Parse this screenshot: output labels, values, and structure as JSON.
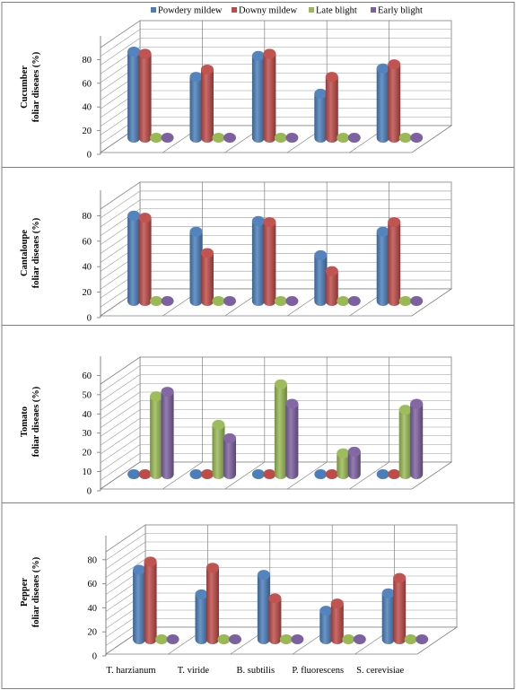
{
  "legend": [
    {
      "name": "Powdery mildew",
      "color": "#4a7ebb"
    },
    {
      "name": "Downy mildew",
      "color": "#be4b48"
    },
    {
      "name": "Late blight",
      "color": "#98b954"
    },
    {
      "name": "Early blight",
      "color": "#7d60a0"
    }
  ],
  "chart_data": [
    {
      "type": "bar",
      "ylabel": [
        "Cucumber",
        "foliar diseaes (%)"
      ],
      "categories": [
        "T. harzianum",
        "T. viride",
        "B. subtilis",
        "P. fluorescens",
        "S. cerevisiae"
      ],
      "yticks": [
        0,
        20,
        40,
        60,
        80
      ],
      "ylim": [
        0,
        100
      ],
      "series": [
        {
          "name": "Powdery mildew",
          "values": [
            82,
            58,
            78,
            42,
            66
          ]
        },
        {
          "name": "Downy mildew",
          "values": [
            80,
            65,
            80,
            58,
            70
          ]
        },
        {
          "name": "Late blight",
          "values": [
            0,
            0,
            0,
            0,
            0
          ]
        },
        {
          "name": "Early blight",
          "values": [
            0,
            0,
            0,
            0,
            0
          ]
        }
      ]
    },
    {
      "type": "bar",
      "ylabel": [
        "Cantaloupe",
        "foliar diseaes (%)"
      ],
      "categories": [
        "T. harzianum",
        "T. viride",
        "B. subtilis",
        "P. fluorescens",
        "S. cerevisiae"
      ],
      "yticks": [
        0,
        20,
        40,
        60,
        80
      ],
      "ylim": [
        0,
        100
      ],
      "series": [
        {
          "name": "Powdery mildew",
          "values": [
            80,
            65,
            75,
            43,
            65
          ]
        },
        {
          "name": "Downy mildew",
          "values": [
            78,
            45,
            74,
            28,
            74
          ]
        },
        {
          "name": "Late blight",
          "values": [
            0,
            0,
            0,
            0,
            0
          ]
        },
        {
          "name": "Early blight",
          "values": [
            0,
            0,
            0,
            0,
            0
          ]
        }
      ]
    },
    {
      "type": "bar",
      "ylabel": [
        "Tomato",
        "foliar diseaes (%)"
      ],
      "categories": [
        "T. harzianum",
        "T. viride",
        "B. subtilis",
        "P. fluorescens",
        "S. cerevisiae"
      ],
      "yticks": [
        0,
        10,
        20,
        30,
        40,
        50,
        60
      ],
      "ylim": [
        0,
        70
      ],
      "series": [
        {
          "name": "Powdery mildew",
          "values": [
            0,
            0,
            0,
            0,
            0
          ]
        },
        {
          "name": "Downy mildew",
          "values": [
            0,
            0,
            0,
            0,
            0
          ]
        },
        {
          "name": "Late blight",
          "values": [
            52,
            33,
            60,
            14,
            43
          ]
        },
        {
          "name": "Early blight",
          "values": [
            55,
            24,
            47,
            15,
            47
          ]
        }
      ]
    },
    {
      "type": "bar",
      "ylabel": [
        "Pepper",
        "foliar diseaes (%)"
      ],
      "categories": [
        "T. harzianum",
        "T. viride",
        "B. subtilis",
        "P. fluorescens",
        "S. cerevisiae"
      ],
      "yticks": [
        0,
        20,
        40,
        60,
        80
      ],
      "ylim": [
        0,
        100
      ],
      "series": [
        {
          "name": "Powdery mildew",
          "values": [
            68,
            44,
            63,
            28,
            45
          ]
        },
        {
          "name": "Downy mildew",
          "values": [
            76,
            70,
            40,
            35,
            60
          ]
        },
        {
          "name": "Late blight",
          "values": [
            0,
            0,
            0,
            0,
            0
          ]
        },
        {
          "name": "Early blight",
          "values": [
            0,
            0,
            0,
            0,
            0
          ]
        }
      ]
    }
  ]
}
